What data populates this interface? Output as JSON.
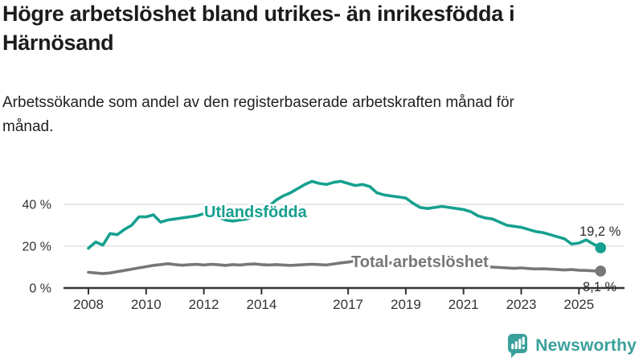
{
  "chart_data": {
    "type": "line",
    "title": "Högre arbetslöshet bland utrikes- än inrikesfödda i Härnösand",
    "subtitle": "Arbetssökande som andel av den registerbaserade arbetskraften månad för månad.",
    "x_label": "",
    "y_label": "",
    "x_unit": "year",
    "x": [
      2008.0,
      2008.25,
      2008.5,
      2008.75,
      2009.0,
      2009.25,
      2009.5,
      2009.75,
      2010.0,
      2010.25,
      2010.5,
      2010.75,
      2011.0,
      2011.25,
      2011.5,
      2011.75,
      2012.0,
      2012.25,
      2012.5,
      2012.75,
      2013.0,
      2013.25,
      2013.5,
      2013.75,
      2014.0,
      2014.25,
      2014.5,
      2014.75,
      2015.0,
      2015.25,
      2015.5,
      2015.75,
      2016.0,
      2016.25,
      2016.5,
      2016.75,
      2017.0,
      2017.25,
      2017.5,
      2017.75,
      2018.0,
      2018.25,
      2018.5,
      2018.75,
      2019.0,
      2019.25,
      2019.5,
      2019.75,
      2020.0,
      2020.25,
      2020.5,
      2020.75,
      2021.0,
      2021.25,
      2021.5,
      2021.75,
      2022.0,
      2022.25,
      2022.5,
      2022.75,
      2023.0,
      2023.25,
      2023.5,
      2023.75,
      2024.0,
      2024.25,
      2024.5,
      2024.75,
      2025.0,
      2025.25,
      2025.5,
      2025.75
    ],
    "series": [
      {
        "name": "Utlandsfödda",
        "color": "#16a08f",
        "end_label": "19,2 %",
        "end_value": 19.2,
        "values": [
          19.0,
          22.0,
          20.5,
          26.0,
          25.5,
          28.0,
          30.0,
          34.0,
          34.0,
          35.0,
          31.5,
          32.5,
          33.0,
          33.5,
          34.0,
          34.5,
          35.5,
          35.0,
          34.0,
          32.5,
          32.0,
          32.5,
          33.0,
          34.0,
          36.0,
          39.0,
          42.0,
          44.0,
          45.5,
          47.5,
          49.5,
          51.0,
          50.0,
          49.5,
          50.5,
          51.0,
          50.0,
          49.0,
          49.5,
          48.5,
          45.5,
          44.5,
          44.0,
          43.5,
          43.0,
          40.5,
          38.5,
          38.0,
          38.5,
          39.0,
          38.5,
          38.0,
          37.5,
          36.5,
          34.5,
          33.5,
          33.0,
          31.5,
          30.0,
          29.5,
          29.0,
          28.0,
          27.0,
          26.5,
          25.5,
          24.5,
          23.5,
          21.0,
          21.5,
          23.0,
          21.0,
          19.2
        ]
      },
      {
        "name": "Total arbetslöshet",
        "color": "#77777b",
        "end_label": "8,1 %",
        "end_value": 8.1,
        "values": [
          7.5,
          7.2,
          6.9,
          7.2,
          7.8,
          8.4,
          9.0,
          9.6,
          10.2,
          10.8,
          11.2,
          11.6,
          11.2,
          10.9,
          11.1,
          11.3,
          11.0,
          11.3,
          11.1,
          10.8,
          11.2,
          11.0,
          11.3,
          11.5,
          11.2,
          11.0,
          11.2,
          11.0,
          10.8,
          11.0,
          11.2,
          11.4,
          11.2,
          11.0,
          11.5,
          12.0,
          12.4,
          12.9,
          12.7,
          12.4,
          12.0,
          11.8,
          12.0,
          11.6,
          11.3,
          11.1,
          11.2,
          11.5,
          12.0,
          12.4,
          12.2,
          12.0,
          11.7,
          11.4,
          10.9,
          10.4,
          10.0,
          9.8,
          9.6,
          9.4,
          9.6,
          9.3,
          9.1,
          9.2,
          9.0,
          8.8,
          8.6,
          8.8,
          8.5,
          8.4,
          8.2,
          8.1
        ]
      }
    ],
    "y_ticks": [
      0,
      20,
      40
    ],
    "y_tick_labels": [
      "0 %",
      "20 %",
      "40 %"
    ],
    "x_ticks": [
      2008,
      2010,
      2012,
      2014,
      2017,
      2019,
      2021,
      2023,
      2025
    ],
    "x_tick_labels": [
      "2008",
      "2010",
      "2012",
      "2014",
      "2017",
      "2019",
      "2021",
      "2023",
      "2025"
    ],
    "ylim": [
      0,
      55
    ],
    "xlim": [
      2007.9,
      2026.6
    ],
    "grid": "horizontal",
    "legend": "inline-labels"
  },
  "colors": {
    "foreign_series": "#16a08f",
    "total_series": "#77777b",
    "axis": "#333333",
    "gridline": "#e2e2e2",
    "value_label_text": "#2b2b2b",
    "brand_teal": "#3aa09b"
  },
  "footer": {
    "brand": "Newsworthy"
  }
}
